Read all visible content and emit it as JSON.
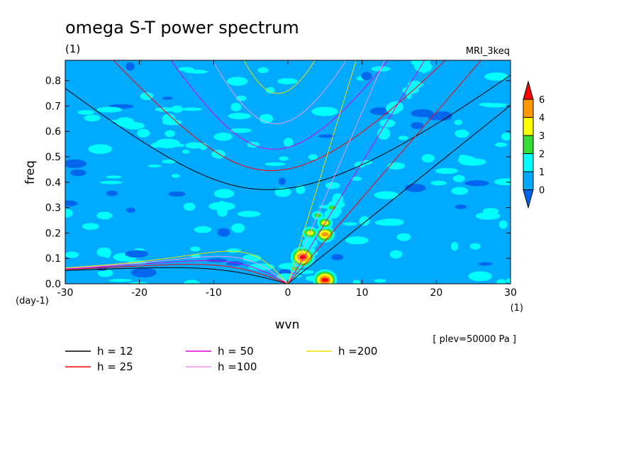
{
  "chart_data": {
    "type": "heatmap",
    "title": "omega S-T power spectrum",
    "subtitle_left": "(1)",
    "subtitle_right": "MRI_3keq",
    "xlabel": "wvn",
    "ylabel": "freq",
    "x_unit": "(1)",
    "y_unit": "(day-1)",
    "note": "[ plev=50000 Pa ]",
    "xlim": [
      -30,
      30
    ],
    "ylim": [
      0,
      0.88
    ],
    "x_ticks": [
      "-30",
      "-20",
      "-10",
      "0",
      "10",
      "20",
      "30"
    ],
    "y_ticks": [
      "0.0",
      "0.1",
      "0.2",
      "0.3",
      "0.4",
      "0.5",
      "0.6",
      "0.7",
      "0.8"
    ],
    "colorbar": {
      "levels": [
        "0",
        "1",
        "2",
        "3",
        "4",
        "6"
      ],
      "colors": [
        "#0066ee",
        "#00aaff",
        "#00ffff",
        "#33dd33",
        "#ffff00",
        "#ff9900",
        "#ff0000"
      ]
    },
    "background_color": "#00aaff",
    "hotspots": [
      {
        "x": 2,
        "y": 0.105,
        "level": 6
      },
      {
        "x": 5,
        "y": 0.195,
        "level": 4
      },
      {
        "x": 5,
        "y": 0.015,
        "level": 6
      },
      {
        "x": 5,
        "y": 0.24,
        "level": 3
      },
      {
        "x": 3,
        "y": 0.2,
        "level": 3
      },
      {
        "x": 4,
        "y": 0.27,
        "level": 2
      },
      {
        "x": 6,
        "y": 0.3,
        "level": 2
      },
      {
        "x": 1,
        "y": 0.06,
        "level": 2
      },
      {
        "x": 7,
        "y": 0.34,
        "level": 1
      }
    ],
    "dispersion_curves": [
      {
        "h": 12,
        "color": "#000000",
        "label": "h = 12"
      },
      {
        "h": 25,
        "color": "#ff0000",
        "label": "h = 25"
      },
      {
        "h": 50,
        "color": "#dd00dd",
        "label": "h = 50"
      },
      {
        "h": 100,
        "color": "#ee99ee",
        "label": "h =100"
      },
      {
        "h": 200,
        "color": "#eedd00",
        "label": "h =200"
      }
    ]
  }
}
